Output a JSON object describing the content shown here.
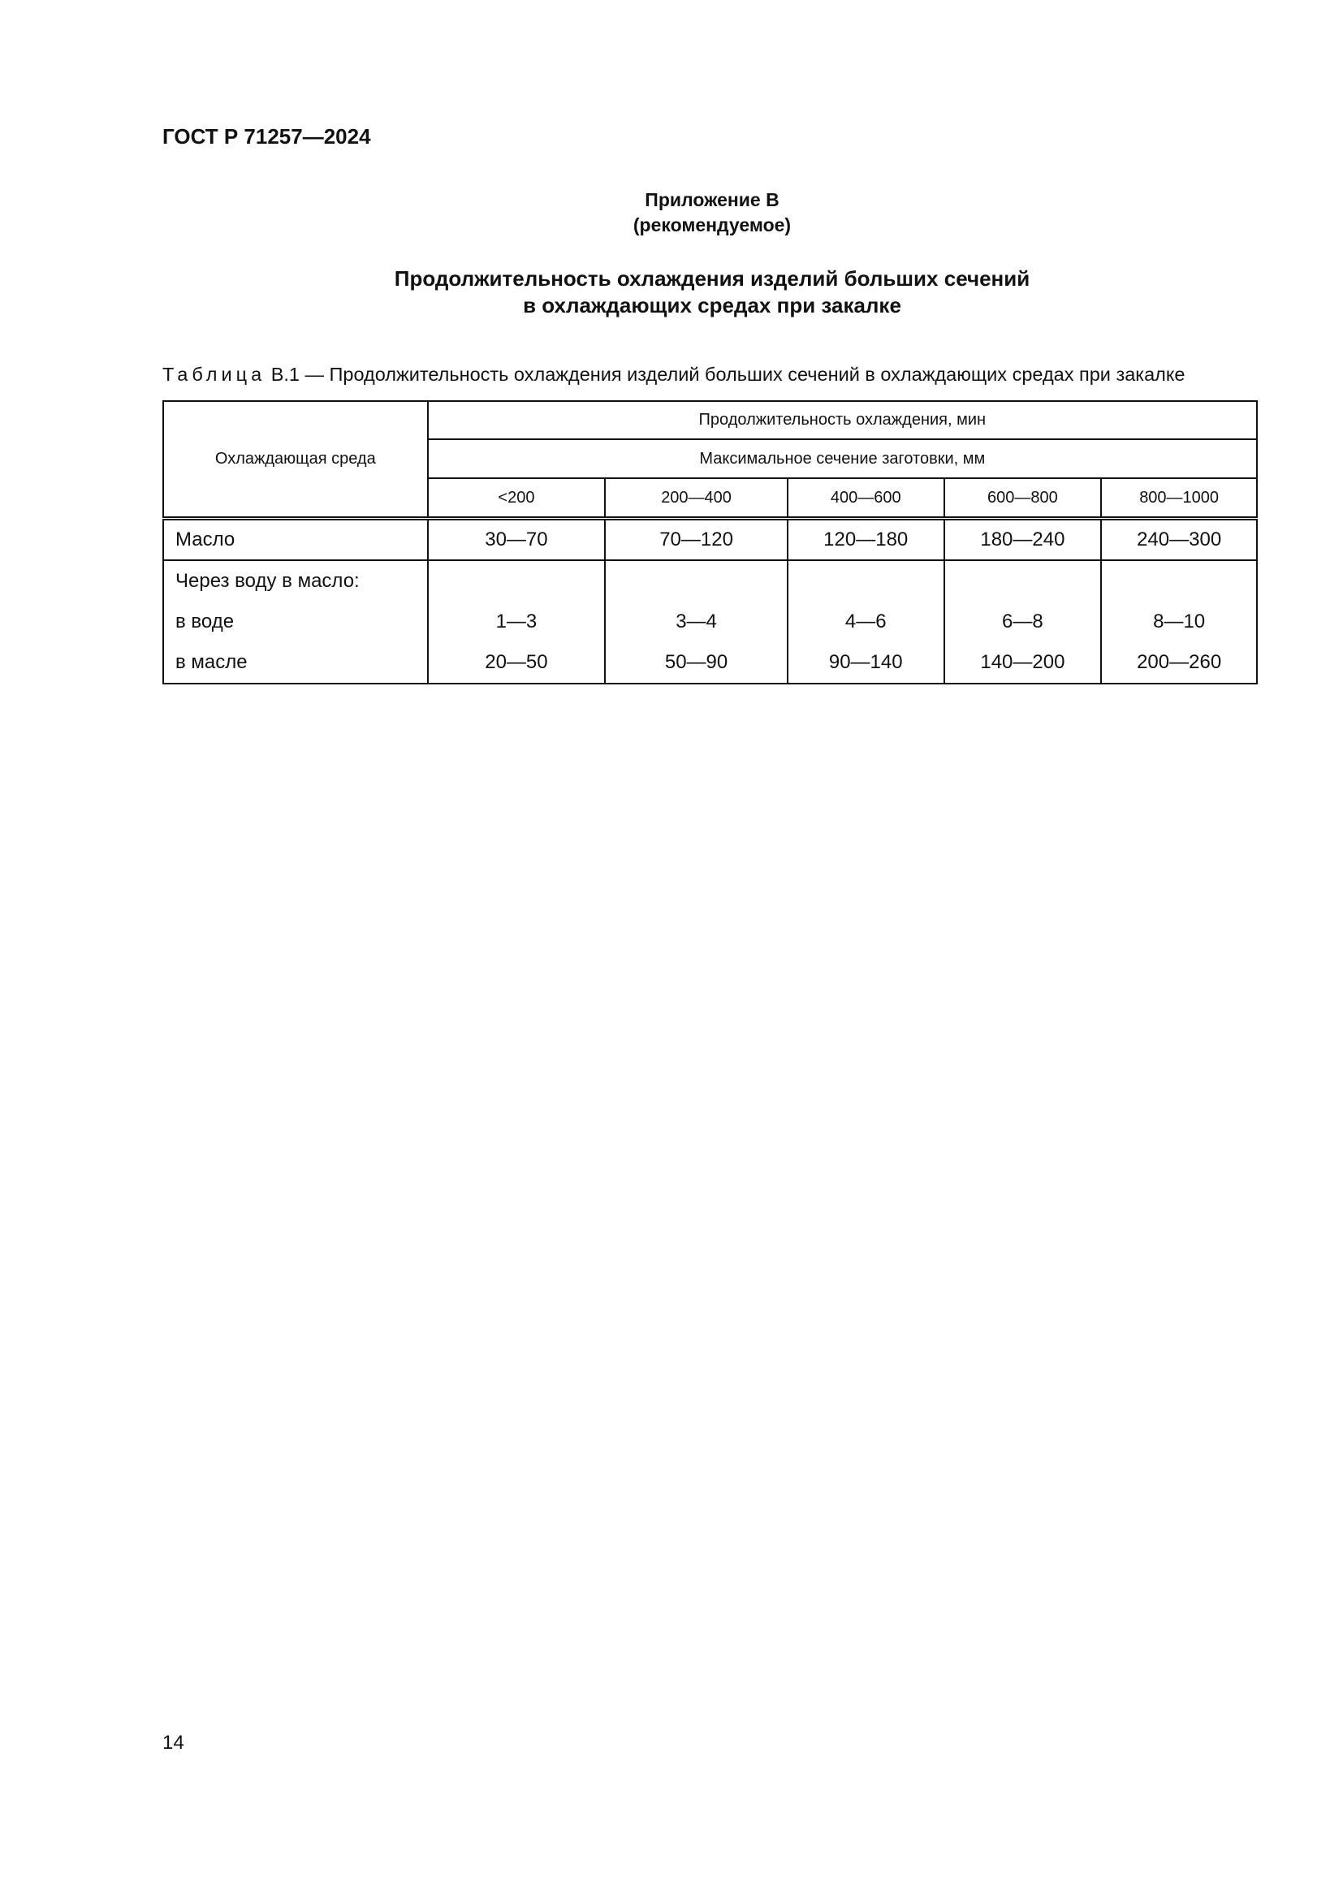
{
  "header": {
    "doc_id": "ГОСТ Р 71257—2024"
  },
  "annex": {
    "label": "Приложение В",
    "type": "(рекомендуемое)"
  },
  "title": {
    "line1": "Продолжительность охлаждения изделий больших сечений",
    "line2": "в охлаждающих средах при закалке"
  },
  "table": {
    "caption_prefix": "Таблица",
    "caption_text": "В.1 — Продолжительность охлаждения изделий больших сечений в охлаждающих средах при закалке",
    "col_medium": "Охлаждающая среда",
    "col_duration": "Продолжительность охлаждения, мин",
    "col_section": "Максимальное сечение заготовки, мм",
    "sections": [
      "<200",
      "200—400",
      "400—600",
      "600—800",
      "800—1000"
    ],
    "rows": [
      {
        "label": "Масло",
        "values": [
          "30—70",
          "70—120",
          "120—180",
          "180—240",
          "240—300"
        ]
      }
    ],
    "group": {
      "label": "Через воду в масло:",
      "rows": [
        {
          "label": "в воде",
          "values": [
            "1—3",
            "3—4",
            "4—6",
            "6—8",
            "8—10"
          ]
        },
        {
          "label": "в масле",
          "values": [
            "20—50",
            "50—90",
            "90—140",
            "140—200",
            "200—260"
          ]
        }
      ]
    }
  },
  "footer": {
    "page_number": "14"
  }
}
